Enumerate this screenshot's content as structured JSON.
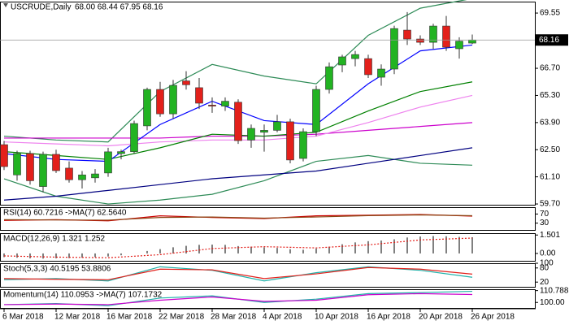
{
  "chart_data": [
    {
      "type": "candlestick",
      "title": "USCRUDE,Daily",
      "ohlc_text": "68.00 68.44 67.95 68.16",
      "up_color": "#22b322",
      "down_color": "#e3201b",
      "categories": [
        "6 Mar 2018",
        null,
        null,
        null,
        "12 Mar 2018",
        null,
        null,
        null,
        "16 Mar 2018",
        null,
        null,
        null,
        "22 Mar 2018",
        null,
        null,
        null,
        "28 Mar 2018",
        null,
        null,
        null,
        "4 Apr 2018",
        null,
        null,
        null,
        "10 Apr 2018",
        null,
        null,
        null,
        "16 Apr 2018",
        null,
        null,
        null,
        "20 Apr 2018",
        null,
        null,
        null,
        "26 Apr 2018"
      ],
      "candles": [
        [
          62.76,
          62.95,
          61.45,
          61.63
        ],
        [
          61.2,
          62.45,
          60.9,
          62.3
        ],
        [
          62.3,
          62.45,
          60.7,
          60.9
        ],
        [
          60.6,
          62.4,
          60.3,
          62.26
        ],
        [
          62.26,
          62.5,
          61.3,
          61.42
        ],
        [
          61.55,
          61.9,
          60.8,
          60.95
        ],
        [
          60.95,
          61.4,
          60.5,
          61.2
        ],
        [
          61.05,
          61.5,
          60.8,
          61.25
        ],
        [
          61.3,
          62.6,
          61.1,
          62.39
        ],
        [
          62.3,
          62.5,
          62.0,
          62.4
        ],
        [
          62.4,
          64.0,
          62.3,
          63.85
        ],
        [
          63.73,
          65.7,
          63.5,
          65.61
        ],
        [
          65.61,
          66.0,
          64.2,
          64.35
        ],
        [
          64.35,
          66.1,
          64.1,
          65.82
        ],
        [
          66.05,
          66.55,
          65.6,
          65.85
        ],
        [
          65.7,
          66.2,
          64.6,
          64.9
        ],
        [
          64.8,
          65.2,
          64.4,
          64.75
        ],
        [
          64.75,
          65.2,
          64.5,
          65.0
        ],
        [
          64.95,
          65.1,
          62.8,
          62.97
        ],
        [
          63.0,
          63.8,
          62.6,
          63.6
        ],
        [
          63.4,
          63.8,
          62.4,
          63.5
        ],
        [
          63.5,
          64.3,
          63.4,
          63.94
        ],
        [
          63.94,
          64.1,
          61.8,
          61.97
        ],
        [
          62.05,
          63.6,
          61.9,
          63.43
        ],
        [
          63.43,
          65.8,
          63.2,
          65.61
        ],
        [
          65.61,
          67.0,
          65.4,
          66.78
        ],
        [
          66.87,
          67.4,
          66.5,
          67.29
        ],
        [
          67.2,
          67.6,
          66.8,
          67.41
        ],
        [
          67.2,
          67.4,
          66.2,
          66.37
        ],
        [
          66.24,
          66.9,
          65.8,
          66.66
        ],
        [
          66.66,
          68.9,
          66.4,
          68.75
        ],
        [
          68.67,
          69.6,
          67.9,
          68.21
        ],
        [
          68.21,
          68.4,
          67.9,
          68.04
        ],
        [
          68.04,
          69.0,
          67.7,
          68.88
        ],
        [
          68.88,
          69.4,
          67.6,
          67.79
        ],
        [
          67.71,
          68.3,
          67.2,
          68.1
        ],
        [
          68.0,
          68.44,
          67.95,
          68.16
        ]
      ],
      "x": [
        0,
        4,
        8,
        12,
        16,
        20,
        24,
        28,
        32,
        36
      ],
      "series": [
        {
          "color": "#2e8b57",
          "values": [
            63.2,
            63.0,
            62.9,
            65.5,
            66.9,
            66.3,
            65.9,
            68.4,
            69.8,
            70.3
          ]
        },
        {
          "color": "#2e8b57",
          "values": [
            61.0,
            60.1,
            59.7,
            59.9,
            60.2,
            60.9,
            61.9,
            62.2,
            61.8,
            61.7
          ]
        },
        {
          "color": "#000080",
          "values": [
            59.9,
            60.1,
            60.4,
            60.7,
            61.0,
            61.2,
            61.4,
            61.8,
            62.2,
            62.6
          ]
        },
        {
          "color": "#cc00cc",
          "values": [
            63.1,
            63.1,
            63.1,
            63.1,
            63.2,
            63.2,
            63.3,
            63.5,
            63.7,
            63.9
          ]
        },
        {
          "color": "#ee82ee",
          "values": [
            62.9,
            62.8,
            62.7,
            62.9,
            63.0,
            63.0,
            63.2,
            63.9,
            64.7,
            65.3
          ]
        },
        {
          "color": "#008000",
          "values": [
            62.4,
            62.2,
            62.0,
            62.6,
            63.3,
            63.2,
            63.4,
            64.5,
            65.5,
            66.0
          ]
        },
        {
          "color": "#0000ff",
          "values": [
            62.3,
            62.0,
            61.9,
            63.8,
            65.0,
            64.0,
            63.8,
            65.9,
            67.6,
            67.9
          ]
        }
      ],
      "ylim": [
        59.66,
        70.14
      ],
      "yticks": [
        69.55,
        {
          "value": 66.7,
          "label": "66.70"
        },
        {
          "value": 65.3,
          "label": "65.30"
        },
        {
          "value": 63.9,
          "label": "63.90"
        },
        {
          "value": 62.5,
          "label": "62.50"
        },
        {
          "value": 61.1,
          "label": "61.10"
        },
        {
          "value": 59.7,
          "label": "59.70"
        }
      ]
    },
    {
      "type": "line",
      "title": "RSI(14) 60.7216 ->MA(7) 62.5640",
      "x": [
        0,
        4,
        8,
        12,
        16,
        20,
        24,
        28,
        32,
        36
      ],
      "series": [
        {
          "color": "#cc0000",
          "values": [
            42,
            45,
            40,
            62,
            55,
            50,
            62,
            65,
            68,
            60.7216
          ]
        },
        {
          "color": "#8b4513",
          "values": [
            45,
            44,
            43,
            55,
            57,
            52,
            57,
            63,
            66,
            62.564
          ]
        }
      ],
      "ylim": [
        0,
        100
      ],
      "yticks": [
        70,
        30
      ]
    },
    {
      "type": "macd",
      "title": "MACD(12,26,9) 1.321 1.252",
      "bar_color": "#808080",
      "bars": [
        -0.3,
        -0.35,
        -0.4,
        -0.42,
        -0.4,
        -0.38,
        -0.35,
        -0.3,
        -0.25,
        -0.15,
        0.0,
        0.2,
        0.35,
        0.5,
        0.62,
        0.7,
        0.72,
        0.7,
        0.6,
        0.55,
        0.5,
        0.45,
        0.35,
        0.3,
        0.4,
        0.55,
        0.75,
        0.9,
        1.0,
        1.05,
        1.15,
        1.3,
        1.38,
        1.42,
        1.4,
        1.35,
        1.321
      ],
      "x": [
        0,
        4,
        8,
        12,
        16,
        20,
        24,
        28,
        32,
        36
      ],
      "series": [
        {
          "color": "#e3201b",
          "values": [
            -0.2,
            -0.3,
            -0.35,
            -0.1,
            0.4,
            0.55,
            0.45,
            0.7,
            1.1,
            1.252
          ]
        }
      ],
      "ylim": [
        -0.6,
        1.65
      ],
      "yticks": [
        1.501,
        {
          "value": 0,
          "label": "0.00"
        }
      ]
    },
    {
      "type": "line",
      "title": "Stoch(5,3,3) 40.5195 53.8806",
      "x": [
        0,
        4,
        8,
        12,
        16,
        20,
        24,
        28,
        32,
        36
      ],
      "series": [
        {
          "color": "#20b2aa",
          "values": [
            30,
            35,
            25,
            85,
            70,
            25,
            60,
            85,
            70,
            40.5195
          ]
        },
        {
          "color": "#e3201b",
          "values": [
            35,
            32,
            30,
            75,
            72,
            35,
            55,
            82,
            75,
            53.8806
          ]
        }
      ],
      "ylim": [
        0,
        100
      ],
      "yticks": [
        100,
        80,
        20
      ]
    },
    {
      "type": "line",
      "title": "Momentum(14) 110.0953 ->MA(7) 107.1732",
      "x": [
        0,
        4,
        8,
        12,
        16,
        20,
        24,
        28,
        32,
        36
      ],
      "series": [
        {
          "color": "#20b2aa",
          "values": [
            98,
            99,
            97,
            104,
            106,
            100,
            103,
            108,
            109,
            110.0953
          ]
        },
        {
          "color": "#cc00cc",
          "values": [
            98,
            98.5,
            98,
            102,
            105,
            101,
            102,
            107,
            108,
            107.1732
          ]
        }
      ],
      "ylim": [
        95,
        112
      ],
      "yticks": [
        110.7881,
        {
          "value": 100,
          "label": "100.00"
        }
      ]
    }
  ]
}
